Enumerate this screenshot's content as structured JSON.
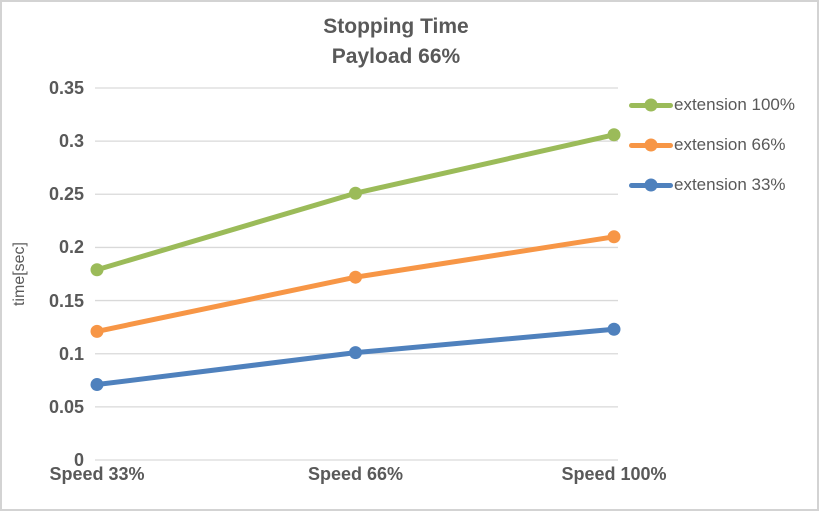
{
  "chart_data": {
    "type": "line",
    "title_lines": [
      "Stopping Time",
      "Payload 66%"
    ],
    "categories": [
      "Speed 33%",
      "Speed 66%",
      "Speed 100%"
    ],
    "series": [
      {
        "name": "extension 100%",
        "color": "#9BBB59",
        "values": [
          0.179,
          0.251,
          0.306
        ]
      },
      {
        "name": "extension 66%",
        "color": "#F79646",
        "values": [
          0.121,
          0.172,
          0.21
        ]
      },
      {
        "name": "extension 33%",
        "color": "#4F81BD",
        "values": [
          0.071,
          0.101,
          0.123
        ]
      }
    ],
    "xlabel": "",
    "ylabel": "time[sec]",
    "ylim": [
      0,
      0.35
    ],
    "ytick_step": 0.05,
    "yticks": [
      "0.35",
      "0.3",
      "0.25",
      "0.2",
      "0.15",
      "0.1",
      "0.05",
      "0"
    ],
    "grid": true,
    "marker": "circle",
    "legend_position": "right",
    "colors": {
      "text": "#595959",
      "gridline": "#D9D9D9",
      "border": "#D3D3D3",
      "background": "#FFFFFF"
    }
  }
}
